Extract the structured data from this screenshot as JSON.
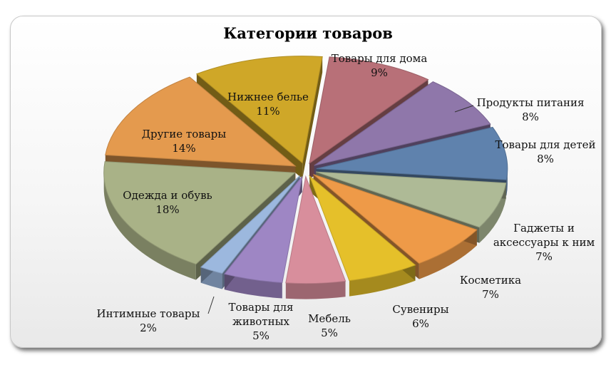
{
  "chart_data": {
    "type": "pie",
    "title": "Категории товаров",
    "labels": [
      "Товары для дома",
      "Продукты питания",
      "Товары для детей",
      "Гаджеты и аксессуары к ним",
      "Косметика",
      "Сувениры",
      "Мебель",
      "Товары для животных",
      "Интимные товары",
      "Одежда и обувь",
      "Другие товары",
      "Нижнее белье"
    ],
    "values": [
      9,
      8,
      8,
      7,
      7,
      6,
      5,
      5,
      2,
      18,
      14,
      11
    ],
    "display": [
      "9%",
      "8%",
      "8%",
      "7%",
      "7%",
      "6%",
      "5%",
      "5%",
      "2%",
      "18%",
      "14%",
      "11%"
    ],
    "colors": [
      "#b87078",
      "#8f77aa",
      "#5f82ad",
      "#aeba96",
      "#ee9a48",
      "#e5c02a",
      "#d88e9c",
      "#9e86c4",
      "#9cb8de",
      "#a9b287",
      "#e49a4e",
      "#cfa728"
    ],
    "legend": "none"
  }
}
